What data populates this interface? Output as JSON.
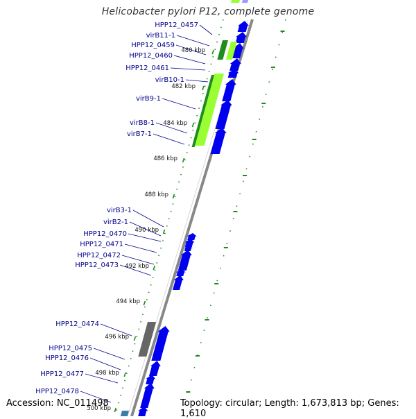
{
  "title": "Helicobacter pylori P12, complete genome",
  "footer": {
    "accession": "Accession: NC_011498",
    "summary": "Topology: circular; Length: 1,673,813 bp; Genes: 1,610"
  },
  "colors": {
    "gene_label": "#00008b",
    "forward_gene": "#0000ee",
    "tick": "#1a8c1a",
    "backbone": "#888888",
    "feature_light_green": "#99ff33",
    "feature_dark_green": "#1e8c1e",
    "feature_gray": "#666666",
    "feature_teal": "#3a7fa6"
  },
  "tick_labels": [
    "480 kbp",
    "482 kbp",
    "484 kbp",
    "486 kbp",
    "488 kbp",
    "490 kbp",
    "492 kbp",
    "494 kbp",
    "496 kbp",
    "498 kbp",
    "500 kbp"
  ],
  "gene_labels": [
    "HPP12_0457",
    "virB11-1",
    "HPP12_0459",
    "HPP12_0460",
    "HPP12_0461",
    "virB10-1",
    "virB9-1",
    "virB8-1",
    "virB7-1",
    "virB3-1",
    "virB2-1",
    "HPP12_0470",
    "HPP12_0471",
    "HPP12_0472",
    "HPP12_0473",
    "HPP12_0474",
    "HPP12_0475",
    "HPP12_0476",
    "HPP12_0477",
    "HPP12_0478"
  ]
}
